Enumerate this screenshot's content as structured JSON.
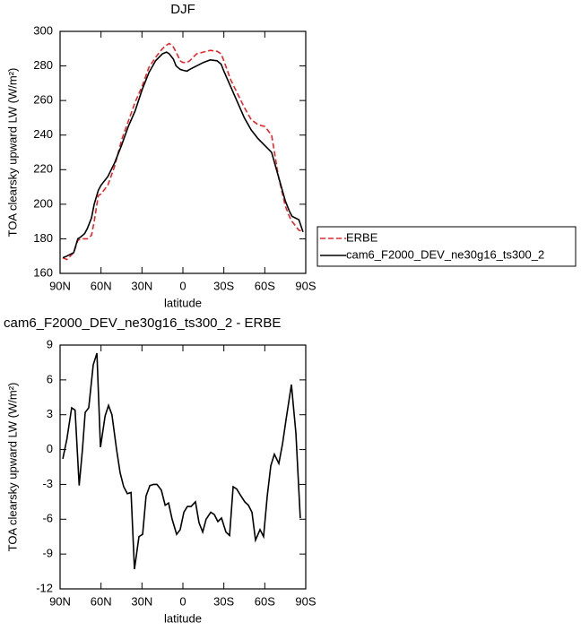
{
  "chart_data": [
    {
      "type": "line",
      "title": "DJF",
      "xlabel": "latitude",
      "ylabel": "TOA clearsky upward LW (W/m²)",
      "x": [
        88,
        85,
        80,
        77,
        75,
        72,
        70,
        67,
        65,
        62,
        60,
        55,
        50,
        45,
        40,
        35,
        30,
        25,
        20,
        15,
        12,
        10,
        7,
        5,
        2,
        0,
        -3,
        -5,
        -10,
        -15,
        -20,
        -25,
        -28,
        -30,
        -35,
        -40,
        -45,
        -50,
        -55,
        -60,
        -65,
        -70,
        -75,
        -78,
        -80,
        -85,
        -88
      ],
      "series": [
        {
          "name": "ERBE",
          "color": "#e8262a",
          "dash": true,
          "values": [
            169,
            168,
            172,
            179,
            180,
            180,
            180,
            182,
            190,
            205,
            206,
            211,
            222,
            237,
            248,
            259,
            268,
            279,
            285,
            290,
            292,
            293,
            291,
            288,
            283,
            282,
            282,
            283,
            287,
            288,
            289,
            288.5,
            287,
            283,
            272,
            264,
            256,
            249,
            246,
            245,
            240,
            216,
            199,
            193,
            190,
            185,
            184
          ]
        },
        {
          "name": "cam6_F2000_DEV_ne30g16_ts300_2",
          "color": "#000000",
          "dash": false,
          "values": [
            169,
            170,
            172,
            180,
            181,
            183,
            186,
            192,
            200,
            208,
            211,
            216,
            224,
            234,
            245,
            254,
            266,
            276,
            283,
            287,
            288,
            287,
            284,
            280,
            278,
            277.5,
            277,
            278,
            280,
            282,
            283.5,
            283,
            281,
            277,
            268,
            259,
            250,
            243,
            238,
            234,
            230,
            216,
            202,
            196,
            193,
            191,
            184
          ]
        }
      ],
      "xlim": [
        90,
        -90
      ],
      "xticks": [
        {
          "value": 90,
          "label": "90N"
        },
        {
          "value": 60,
          "label": "60N"
        },
        {
          "value": 30,
          "label": "30N"
        },
        0,
        {
          "value": -30,
          "label": "30S"
        },
        {
          "value": -60,
          "label": "60S"
        },
        {
          "value": -90,
          "label": "90S"
        }
      ],
      "ylim": [
        160,
        300
      ],
      "yticks": [
        160,
        180,
        200,
        220,
        240,
        260,
        280,
        300
      ],
      "legend": "outside-right"
    },
    {
      "type": "line",
      "title": "cam6_F2000_DEV_ne30g16_ts300_2 - ERBE",
      "xlabel": "latitude",
      "ylabel": "TOA clearsky upward LW (W/m²)",
      "x": [
        88,
        85,
        81.5,
        79,
        76,
        73.6,
        71.6,
        69,
        65.7,
        63,
        60.4,
        57,
        54.5,
        52,
        48.6,
        46,
        43.4,
        40.7,
        38,
        35.5,
        32.2,
        29.5,
        27,
        24.2,
        21.6,
        19,
        15.8,
        13,
        10.5,
        7.9,
        4.6,
        2,
        -0.7,
        -3.3,
        -6,
        -9.2,
        -11.8,
        -14.5,
        -17,
        -20.4,
        -23,
        -25.6,
        -28.3,
        -31.5,
        -34.2,
        -36.8,
        -39.4,
        -42,
        -45.3,
        -48,
        -50.6,
        -53.2,
        -56.5,
        -59.1,
        -61.8,
        -64.4,
        -67,
        -70.3,
        -73,
        -75.6,
        -79.5,
        -82.8,
        -86
      ],
      "values": [
        -0.8,
        0.9,
        3.6,
        3.4,
        -3.1,
        0,
        3.2,
        3.6,
        7.3,
        8.3,
        0.2,
        2.9,
        3.8,
        3,
        0,
        -2,
        -3.2,
        -3.8,
        -3.7,
        -10.3,
        -7.5,
        -7.3,
        -4,
        -3.1,
        -3,
        -3,
        -3.5,
        -4.8,
        -4.6,
        -6,
        -7.3,
        -6.9,
        -5.4,
        -4.9,
        -4.9,
        -4.5,
        -6.3,
        -7.1,
        -6,
        -5.4,
        -5.6,
        -6.2,
        -5.9,
        -7.1,
        -7.4,
        -3.2,
        -3.4,
        -3.9,
        -4.5,
        -4.8,
        -5.4,
        -7.8,
        -6.9,
        -7.5,
        -4,
        -1.4,
        -0.4,
        -1.2,
        0.5,
        2.6,
        5.6,
        1.4,
        -5.9
      ],
      "color": "#000000",
      "xlim": [
        90,
        -90
      ],
      "xticks": [
        {
          "value": 90,
          "label": "90N"
        },
        {
          "value": 60,
          "label": "60N"
        },
        {
          "value": 30,
          "label": "30N"
        },
        0,
        {
          "value": -30,
          "label": "30S"
        },
        {
          "value": -60,
          "label": "60S"
        },
        {
          "value": -90,
          "label": "90S"
        }
      ],
      "ylim": [
        -12,
        9
      ],
      "yticks": [
        -12,
        -9,
        -6,
        -3,
        0,
        3,
        6,
        9
      ]
    }
  ]
}
